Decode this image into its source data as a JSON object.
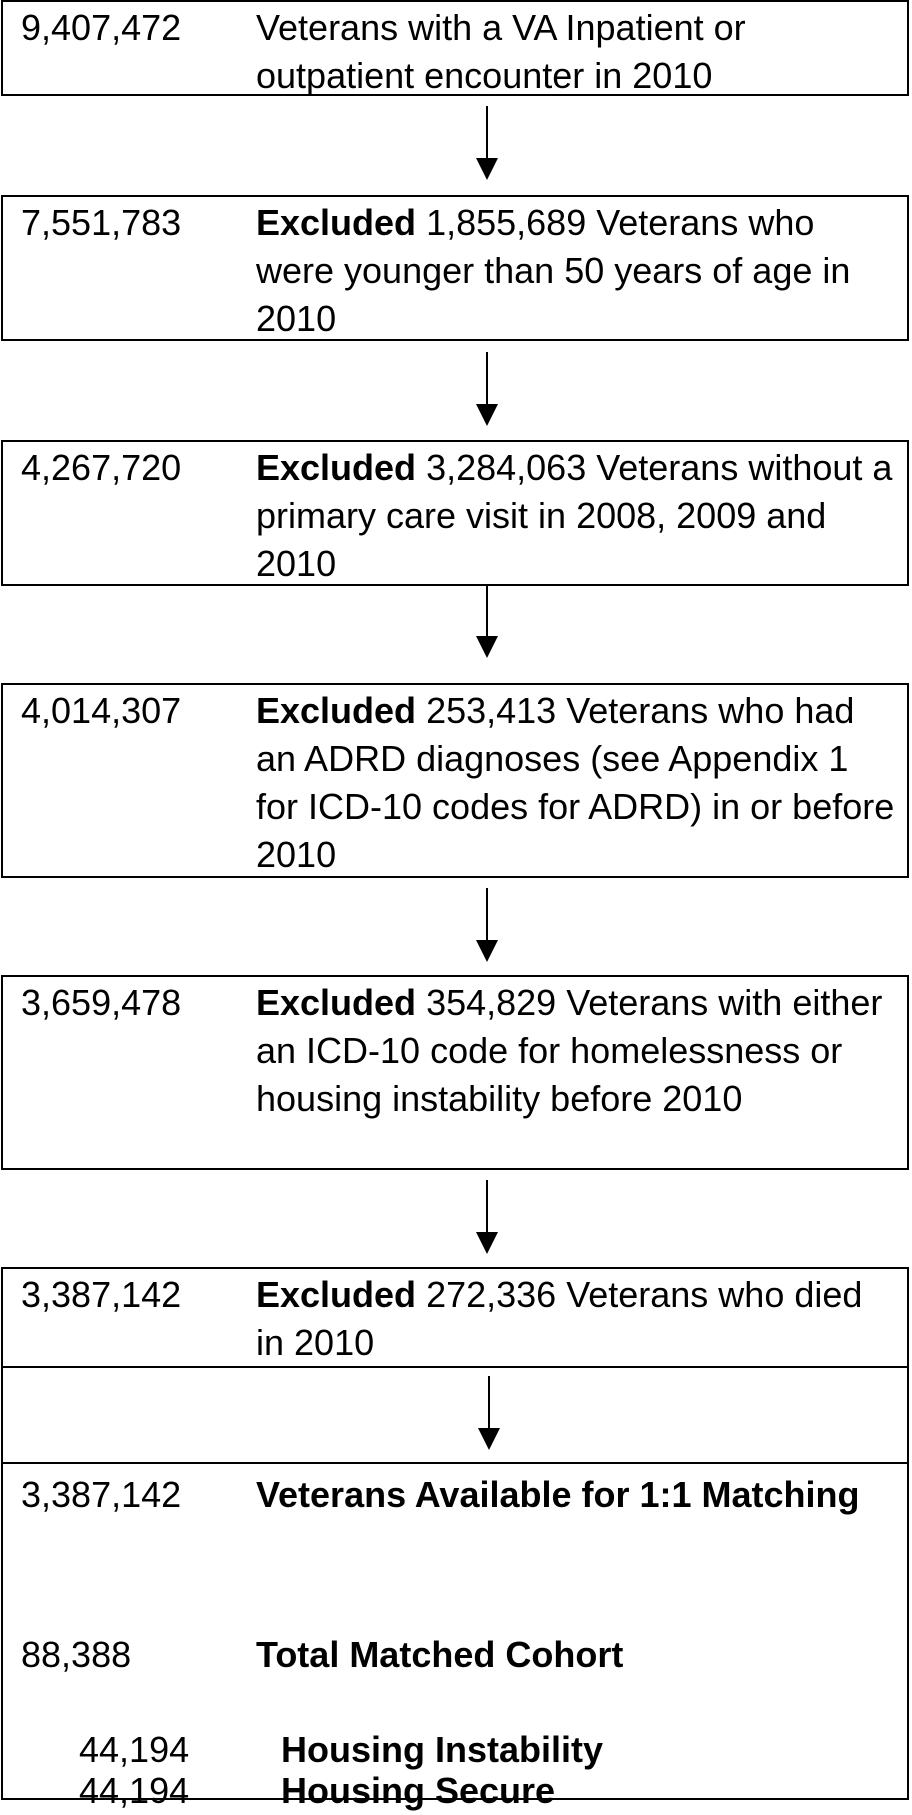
{
  "steps": [
    {
      "count": "9,407,472",
      "bold": "",
      "text": "Veterans with a VA Inpatient or outpatient encounter in 2010"
    },
    {
      "count": "7,551,783",
      "bold": "Excluded",
      "text": " 1,855,689 Veterans who were younger than 50 years of age in 2010"
    },
    {
      "count": "4,267,720",
      "bold": "Excluded",
      "text": " 3,284,063 Veterans without a primary care visit in 2008, 2009 and 2010"
    },
    {
      "count": "4,014,307",
      "bold": "Excluded",
      "text": " 253,413 Veterans who had an ADRD diagnoses (see Appendix 1 for ICD-10 codes for ADRD) in or before 2010"
    },
    {
      "count": "3,659,478",
      "bold": "Excluded",
      "text": " 354,829 Veterans with either an ICD-10 code for homelessness or housing instability before 2010"
    },
    {
      "count": "3,387,142",
      "bold": "Excluded",
      "text": " 272,336 Veterans who died in 2010"
    }
  ],
  "final": {
    "available_count": "3,387,142",
    "available_label": "Veterans Available for 1:1 Matching",
    "matched_count": "88,388",
    "matched_label": "Total Matched Cohort",
    "groups": [
      {
        "count": "44,194",
        "label": "Housing Instability"
      },
      {
        "count": "44,194",
        "label": "Housing Secure"
      }
    ]
  }
}
